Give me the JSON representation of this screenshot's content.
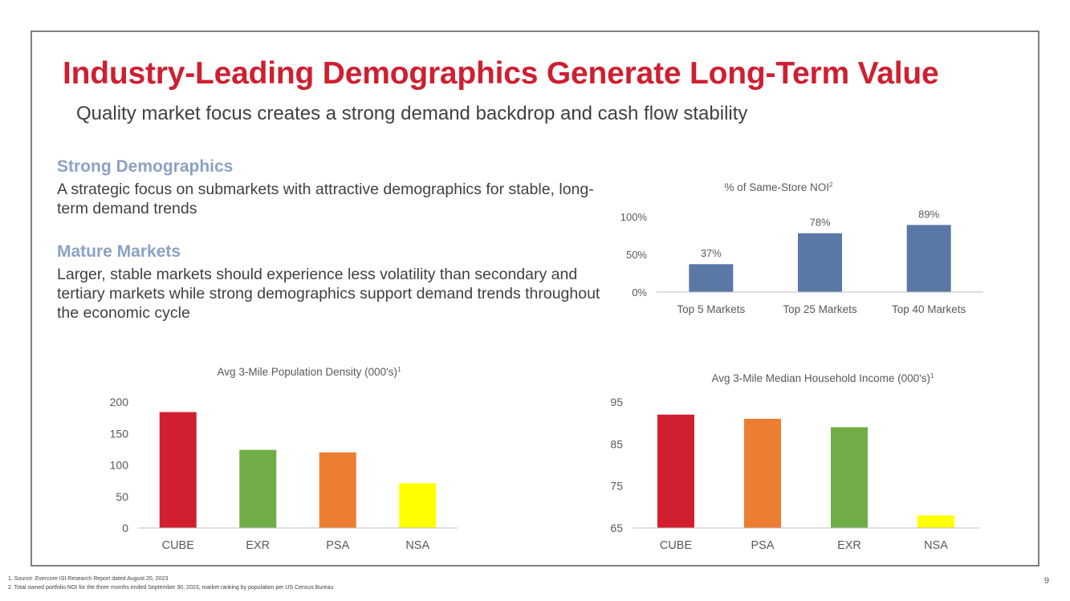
{
  "title": "Industry-Leading Demographics Generate Long-Term Value",
  "subtitle": "Quality market focus creates a strong demand backdrop and cash flow stability",
  "sections": [
    {
      "heading": "Strong Demographics",
      "body": "A strategic focus on submarkets with attractive demographics for stable, long-term demand trends"
    },
    {
      "heading": "Mature Markets",
      "body": "Larger, stable markets should experience less volatility than secondary and tertiary markets while strong demographics support demand trends throughout the economic cycle"
    }
  ],
  "footnotes": [
    "1.    Source: Evercore ISI Research Report dated August 20, 2023",
    "2.    Total owned portfolio NOI for the three months ended September 30, 2023, market ranking by population per US Census Bureau"
  ],
  "page_number": "9",
  "chart_data": [
    {
      "id": "noi",
      "type": "bar",
      "title": "% of Same-Store NOI",
      "title_sup": "2",
      "categories": [
        "Top 5 Markets",
        "Top 25 Markets",
        "Top 40 Markets"
      ],
      "values": [
        37,
        78,
        89
      ],
      "data_labels": [
        "37%",
        "78%",
        "89%"
      ],
      "colors": [
        "#5a78a6",
        "#5a78a6",
        "#5a78a6"
      ],
      "ylim": [
        0,
        100
      ],
      "yticks": [
        0,
        50,
        100
      ],
      "ytick_labels": [
        "0%",
        "50%",
        "100%"
      ],
      "xlabel": "",
      "ylabel": ""
    },
    {
      "id": "density",
      "type": "bar",
      "title": "Avg 3-Mile Population Density (000's)",
      "title_sup": "1",
      "categories": [
        "CUBE",
        "EXR",
        "PSA",
        "NSA"
      ],
      "values": [
        184,
        124,
        120,
        71
      ],
      "colors": [
        "#d11f30",
        "#70ad47",
        "#ed7d31",
        "#ffff00"
      ],
      "ylim": [
        0,
        200
      ],
      "yticks": [
        0,
        50,
        100,
        150,
        200
      ],
      "ytick_labels": [
        "0",
        "50",
        "100",
        "150",
        "200"
      ],
      "xlabel": "",
      "ylabel": ""
    },
    {
      "id": "income",
      "type": "bar",
      "title": "Avg 3-Mile Median Household Income (000's)",
      "title_sup": "1",
      "categories": [
        "CUBE",
        "PSA",
        "EXR",
        "NSA"
      ],
      "values": [
        92,
        91,
        89,
        68
      ],
      "colors": [
        "#d11f30",
        "#ed7d31",
        "#70ad47",
        "#ffff00"
      ],
      "ylim": [
        65,
        95
      ],
      "yticks": [
        65,
        75,
        85,
        95
      ],
      "ytick_labels": [
        "65",
        "75",
        "85",
        "95"
      ],
      "xlabel": "",
      "ylabel": ""
    }
  ]
}
